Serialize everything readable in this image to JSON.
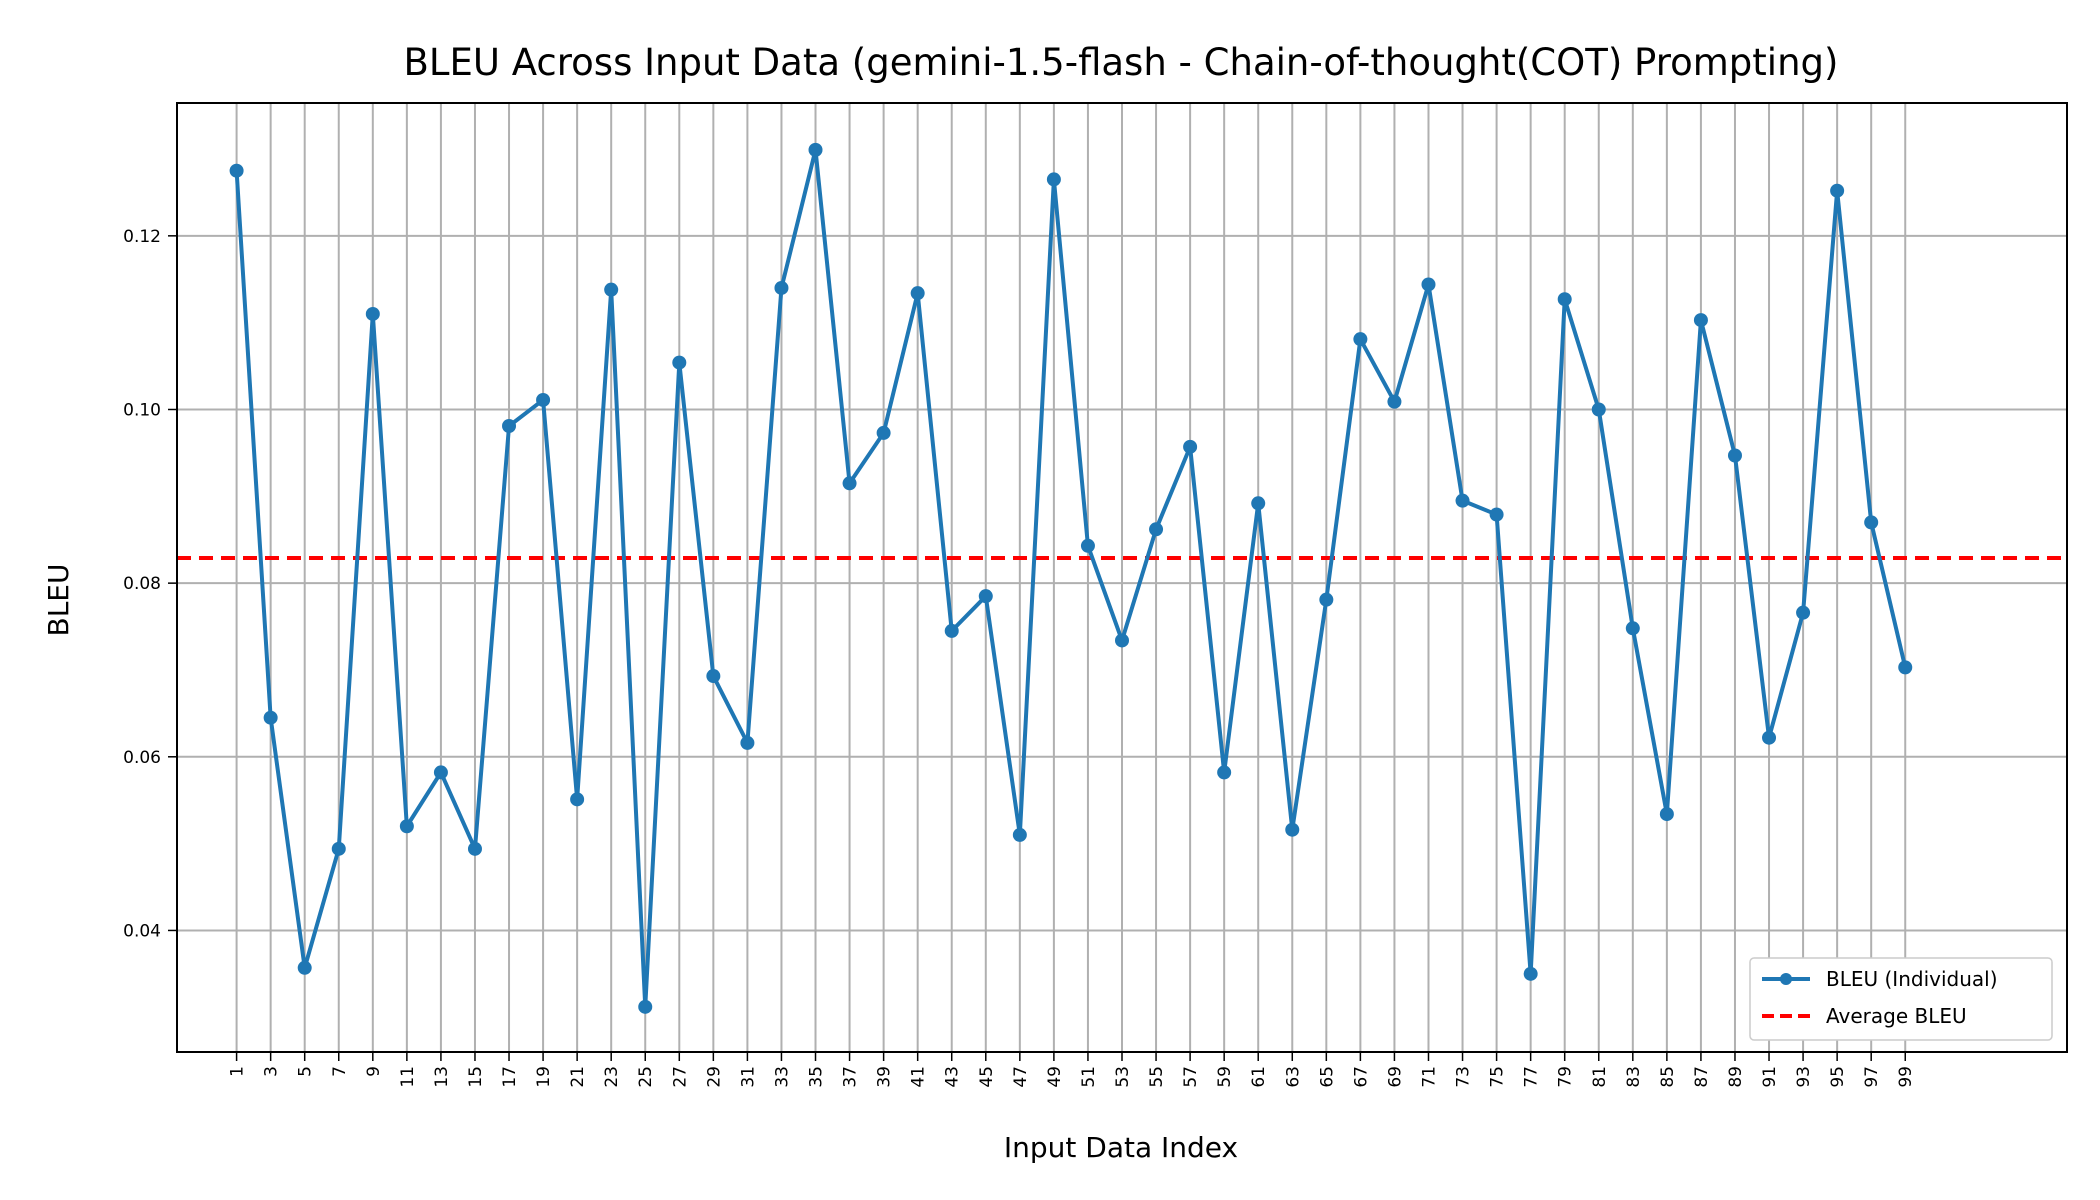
{
  "chart_data": {
    "type": "line",
    "title": "BLEU Across Input Data (gemini-1.5-flash - Chain-of-thought(COT) Prompting)",
    "xlabel": "Input Data Index",
    "ylabel": "BLEU",
    "x": [
      1,
      3,
      5,
      7,
      9,
      11,
      13,
      15,
      17,
      19,
      21,
      23,
      25,
      27,
      29,
      31,
      33,
      35,
      37,
      39,
      41,
      43,
      45,
      47,
      49,
      51,
      53,
      55,
      57,
      59,
      61,
      63,
      65,
      67,
      69,
      71,
      73,
      75,
      77,
      79,
      81,
      83,
      85,
      87,
      89,
      91,
      93,
      95,
      97,
      99
    ],
    "x_tick_labels": [
      "1",
      "3",
      "5",
      "7",
      "9",
      "11",
      "13",
      "15",
      "17",
      "19",
      "21",
      "23",
      "25",
      "27",
      "29",
      "31",
      "33",
      "35",
      "37",
      "39",
      "41",
      "43",
      "45",
      "47",
      "49",
      "51",
      "53",
      "55",
      "57",
      "59",
      "61",
      "63",
      "65",
      "67",
      "69",
      "71",
      "73",
      "75",
      "77",
      "79",
      "81",
      "83",
      "85",
      "87",
      "89",
      "91",
      "93",
      "95",
      "97",
      "99"
    ],
    "y_ticks": [
      0.04,
      0.06,
      0.08,
      0.1,
      0.12
    ],
    "y_tick_labels": [
      "0.04",
      "0.06",
      "0.08",
      "0.10",
      "0.12"
    ],
    "xlim": [
      -2.5,
      108.5
    ],
    "ylim": [
      0.026,
      0.1353
    ],
    "grid": true,
    "legend_position": "lower-right",
    "series": [
      {
        "name": "BLEU (Individual)",
        "color": "#1f77b4",
        "style": "line-with-markers",
        "values": [
          0.1275,
          0.0645,
          0.0357,
          0.0494,
          0.111,
          0.052,
          0.0582,
          0.0494,
          0.0981,
          0.1011,
          0.0551,
          0.1138,
          0.0312,
          0.1054,
          0.0693,
          0.0616,
          0.114,
          0.1299,
          0.0915,
          0.0973,
          0.1134,
          0.0745,
          0.0785,
          0.051,
          0.1265,
          0.0843,
          0.0734,
          0.0862,
          0.0957,
          0.0582,
          0.0892,
          0.0516,
          0.0781,
          0.1081,
          0.1009,
          0.1144,
          0.0895,
          0.0879,
          0.035,
          0.1127,
          0.1,
          0.0748,
          0.0534,
          0.1103,
          0.0947,
          0.0622,
          0.0766,
          0.1252,
          0.087,
          0.0703
        ]
      }
    ],
    "reference_lines": [
      {
        "name": "Average BLEU",
        "color": "#ff0000",
        "style": "dashed",
        "value": 0.0829
      }
    ]
  }
}
